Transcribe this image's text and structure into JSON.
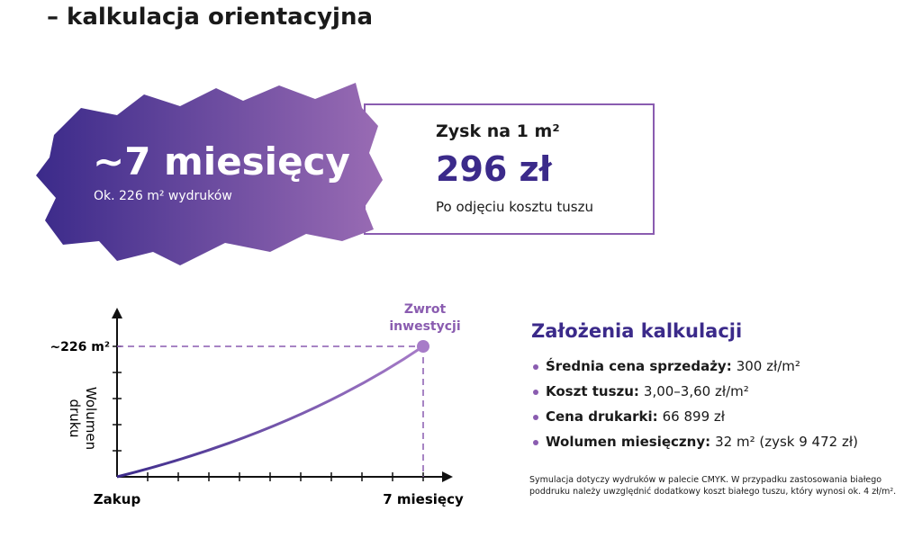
{
  "header": {
    "title": "– kalkulacja orientacyjna"
  },
  "highlight": {
    "main": "~7 miesięcy",
    "sub": "Ok. 226 m² wydruków"
  },
  "profit": {
    "label": "Zysk na 1 m²",
    "value": "296 zł",
    "note": "Po odjęciu kosztu tuszu"
  },
  "diagram": {
    "y_label": [
      "Wolumen",
      "druku"
    ],
    "y_marker": "~226 m²",
    "point_label": [
      "Zwrot",
      "inwestycji"
    ],
    "x_start": "Zakup",
    "x_end": "7 miesięcy"
  },
  "assumptions": {
    "title": "Założenia kalkulacji",
    "items": [
      {
        "label": "Średnia cena sprzedaży:",
        "value": "300 zł/m²"
      },
      {
        "label": "Koszt tuszu:",
        "value": "3,00–3,60 zł/m²"
      },
      {
        "label": "Cena drukarki:",
        "value": "66 899 zł"
      },
      {
        "label": "Wolumen miesięczny:",
        "value": "32 m² (zysk 9 472 zł)"
      }
    ],
    "footnote": "Symulacja dotyczy wydruków w palecie CMYK. W przypadku zastosowania białego poddruku należy uwzględnić dodatkowy koszt białego tuszu, który wynosi ok. 4 zł/m²."
  }
}
